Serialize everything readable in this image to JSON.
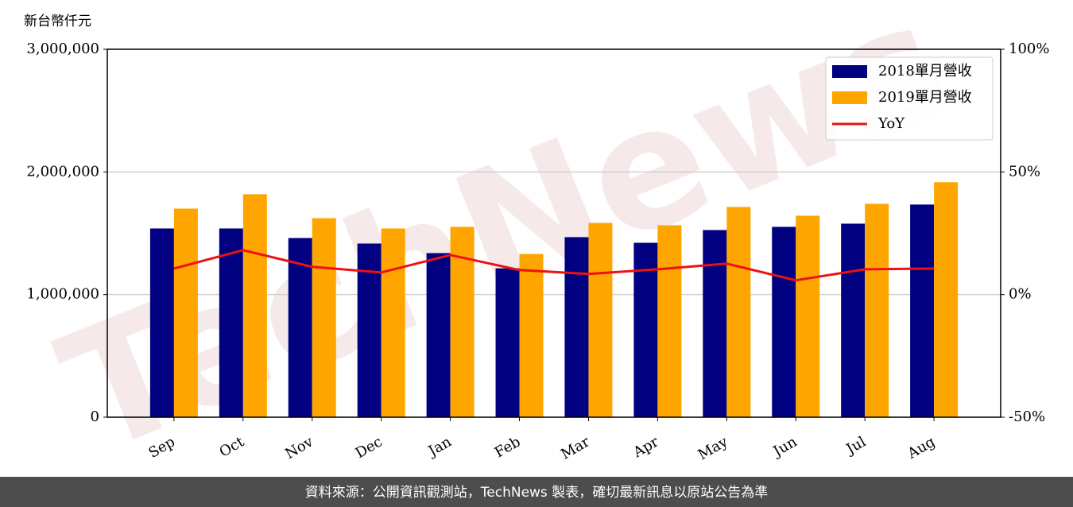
{
  "chart_data": {
    "type": "bar",
    "y_label": "新台幣仟元",
    "watermark": "TechNews",
    "categories": [
      "Sep",
      "Oct",
      "Nov",
      "Dec",
      "Jan",
      "Feb",
      "Mar",
      "Apr",
      "May",
      "Jun",
      "Jul",
      "Aug"
    ],
    "series": [
      {
        "name": "2018單月營收",
        "color": "#000080",
        "values": [
          1539000,
          1539000,
          1461000,
          1416000,
          1338000,
          1214000,
          1468000,
          1422000,
          1526000,
          1552000,
          1578000,
          1734000
        ]
      },
      {
        "name": "2019單月營收",
        "color": "#ffa500",
        "values": [
          1701000,
          1818000,
          1623000,
          1539000,
          1552000,
          1331000,
          1584000,
          1565000,
          1714000,
          1643000,
          1740000,
          1916000
        ]
      },
      {
        "name": "YoY",
        "color": "#ee1111",
        "type": "line",
        "axis": "y2",
        "values": [
          10.6,
          18.1,
          11.3,
          9.0,
          16.1,
          10.0,
          8.4,
          10.3,
          12.6,
          5.8,
          10.3,
          10.6
        ]
      }
    ],
    "ylim": [
      0,
      3000000
    ],
    "yticks": [
      {
        "value": 0,
        "label": "0"
      },
      {
        "value": 1000000,
        "label": "1,000,000"
      },
      {
        "value": 2000000,
        "label": "2,000,000"
      },
      {
        "value": 3000000,
        "label": "3,000,000"
      }
    ],
    "y2lim": [
      -50,
      100
    ],
    "y2ticks": [
      {
        "value": -50,
        "label": "-50%"
      },
      {
        "value": 0,
        "label": "0%"
      },
      {
        "value": 50,
        "label": "50%"
      },
      {
        "value": 100,
        "label": "100%"
      }
    ],
    "grid": true,
    "legend": "upper-right"
  },
  "footer": "資料來源：公開資訊觀測站，TechNews 製表，確切最新訊息以原站公告為準"
}
